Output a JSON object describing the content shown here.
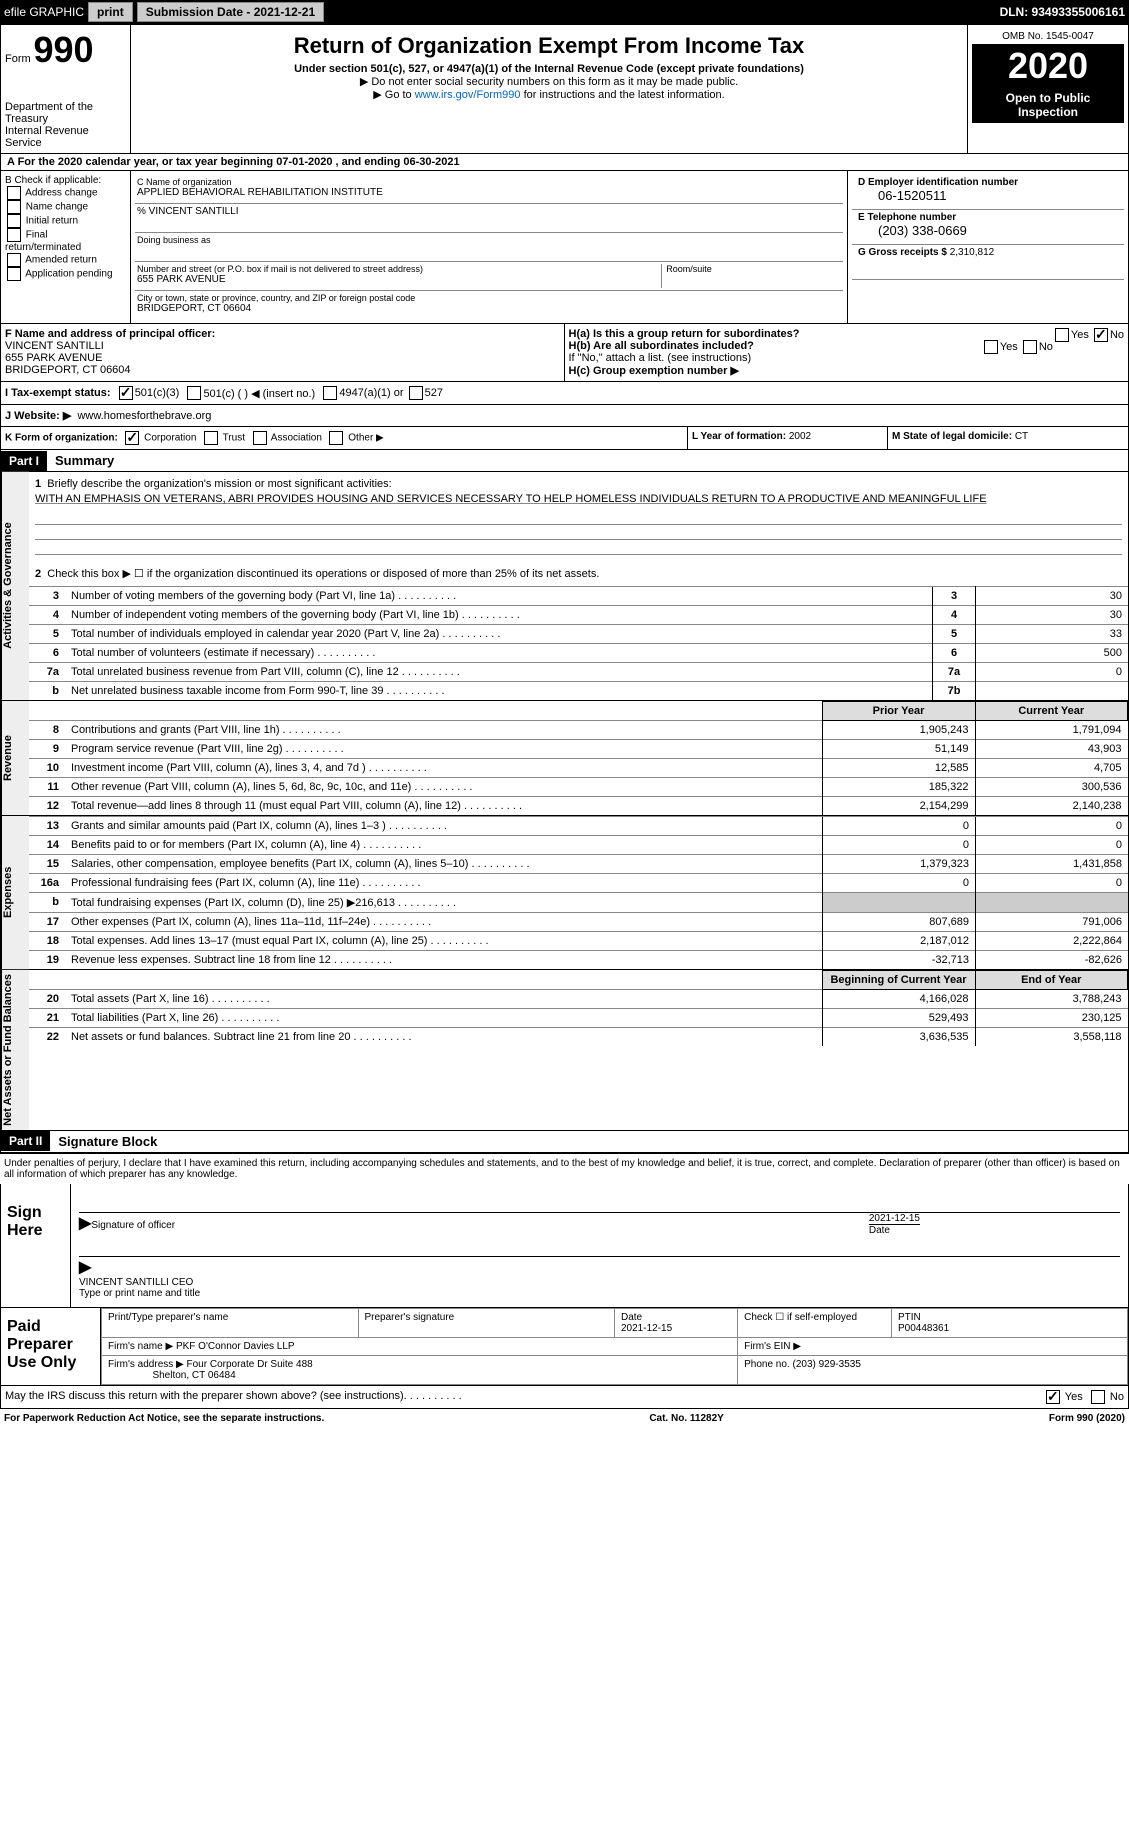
{
  "top": {
    "efile": "efile GRAPHIC",
    "print": "print",
    "sub_label": "Submission Date -",
    "sub_date": "2021-12-21",
    "dln": "DLN: 93493355006161"
  },
  "header": {
    "form": "Form",
    "form_no": "990",
    "dept": "Department of the Treasury\nInternal Revenue Service",
    "title": "Return of Organization Exempt From Income Tax",
    "subtitle": "Under section 501(c), 527, or 4947(a)(1) of the Internal Revenue Code (except private foundations)",
    "line1": "▶ Do not enter social security numbers on this form as it may be made public.",
    "line2_pre": "▶ Go to ",
    "line2_link": "www.irs.gov/Form990",
    "line2_post": " for instructions and the latest information.",
    "omb": "OMB No. 1545-0047",
    "year": "2020",
    "inspection": "Open to Public Inspection"
  },
  "row_a": "A For the 2020 calendar year, or tax year beginning 07-01-2020   , and ending 06-30-2021",
  "box_b": {
    "title": "B Check if applicable:",
    "items": [
      "Address change",
      "Name change",
      "Initial return",
      "Final return/terminated",
      "Amended return",
      "Application pending"
    ]
  },
  "box_c": {
    "name_label": "C Name of organization",
    "name": "APPLIED BEHAVIORAL REHABILITATION INSTITUTE",
    "care_of": "% VINCENT SANTILLI",
    "dba_label": "Doing business as",
    "dba": "",
    "addr_label": "Number and street (or P.O. box if mail is not delivered to street address)",
    "room_label": "Room/suite",
    "addr": "655 PARK AVENUE",
    "city_label": "City or town, state or province, country, and ZIP or foreign postal code",
    "city": "BRIDGEPORT, CT  06604"
  },
  "box_d": {
    "ein_label": "D Employer identification number",
    "ein": "06-1520511",
    "phone_label": "E Telephone number",
    "phone": "(203) 338-0669",
    "gross_label": "G Gross receipts $",
    "gross": "2,310,812"
  },
  "box_f": {
    "label": "F Name and address of principal officer:",
    "name": "VINCENT SANTILLI",
    "addr": "655 PARK AVENUE",
    "city": "BRIDGEPORT, CT  06604"
  },
  "box_h": {
    "a_label": "H(a)  Is this a group return for subordinates?",
    "b_label": "H(b)  Are all subordinates included?",
    "note": "If \"No,\" attach a list. (see instructions)",
    "c_label": "H(c)  Group exemption number ▶"
  },
  "row_i": {
    "label": "I   Tax-exempt status:",
    "opt1": "501(c)(3)",
    "opt2": "501(c) (  ) ◀ (insert no.)",
    "opt3": "4947(a)(1) or",
    "opt4": "527"
  },
  "row_j": {
    "label": "J   Website: ▶",
    "value": "www.homesforthebrave.org"
  },
  "row_k": {
    "label": "K Form of organization:",
    "opts": [
      "Corporation",
      "Trust",
      "Association",
      "Other ▶"
    ]
  },
  "row_l": {
    "label": "L Year of formation:",
    "value": "2002"
  },
  "row_m": {
    "label": "M State of legal domicile:",
    "value": "CT"
  },
  "part1": {
    "header": "Part I",
    "title": "Summary",
    "line1_label": "Briefly describe the organization's mission or most significant activities:",
    "mission": "WITH AN EMPHASIS ON VETERANS, ABRI PROVIDES HOUSING AND SERVICES NECESSARY TO HELP HOMELESS INDIVIDUALS RETURN TO A PRODUCTIVE AND MEANINGFUL LIFE",
    "line2": "Check this box ▶ ☐  if the organization discontinued its operations or disposed of more than 25% of its net assets."
  },
  "governance": {
    "label": "Activities & Governance",
    "rows": [
      {
        "no": "3",
        "text": "Number of voting members of the governing body (Part VI, line 1a)",
        "box": "3",
        "val": "30"
      },
      {
        "no": "4",
        "text": "Number of independent voting members of the governing body (Part VI, line 1b)",
        "box": "4",
        "val": "30"
      },
      {
        "no": "5",
        "text": "Total number of individuals employed in calendar year 2020 (Part V, line 2a)",
        "box": "5",
        "val": "33"
      },
      {
        "no": "6",
        "text": "Total number of volunteers (estimate if necessary)",
        "box": "6",
        "val": "500"
      },
      {
        "no": "7a",
        "text": "Total unrelated business revenue from Part VIII, column (C), line 12",
        "box": "7a",
        "val": "0"
      },
      {
        "no": "b",
        "text": "Net unrelated business taxable income from Form 990-T, line 39",
        "box": "7b",
        "val": ""
      }
    ]
  },
  "revenue": {
    "label": "Revenue",
    "header_prior": "Prior Year",
    "header_current": "Current Year",
    "rows": [
      {
        "no": "8",
        "text": "Contributions and grants (Part VIII, line 1h)",
        "prior": "1,905,243",
        "curr": "1,791,094"
      },
      {
        "no": "9",
        "text": "Program service revenue (Part VIII, line 2g)",
        "prior": "51,149",
        "curr": "43,903"
      },
      {
        "no": "10",
        "text": "Investment income (Part VIII, column (A), lines 3, 4, and 7d )",
        "prior": "12,585",
        "curr": "4,705"
      },
      {
        "no": "11",
        "text": "Other revenue (Part VIII, column (A), lines 5, 6d, 8c, 9c, 10c, and 11e)",
        "prior": "185,322",
        "curr": "300,536"
      },
      {
        "no": "12",
        "text": "Total revenue—add lines 8 through 11 (must equal Part VIII, column (A), line 12)",
        "prior": "2,154,299",
        "curr": "2,140,238"
      }
    ]
  },
  "expenses": {
    "label": "Expenses",
    "rows": [
      {
        "no": "13",
        "text": "Grants and similar amounts paid (Part IX, column (A), lines 1–3 )",
        "prior": "0",
        "curr": "0"
      },
      {
        "no": "14",
        "text": "Benefits paid to or for members (Part IX, column (A), line 4)",
        "prior": "0",
        "curr": "0"
      },
      {
        "no": "15",
        "text": "Salaries, other compensation, employee benefits (Part IX, column (A), lines 5–10)",
        "prior": "1,379,323",
        "curr": "1,431,858"
      },
      {
        "no": "16a",
        "text": "Professional fundraising fees (Part IX, column (A), line 11e)",
        "prior": "0",
        "curr": "0"
      },
      {
        "no": "b",
        "text": "Total fundraising expenses (Part IX, column (D), line 25) ▶216,613",
        "prior": "",
        "curr": "",
        "grey": true
      },
      {
        "no": "17",
        "text": "Other expenses (Part IX, column (A), lines 11a–11d, 11f–24e)",
        "prior": "807,689",
        "curr": "791,006"
      },
      {
        "no": "18",
        "text": "Total expenses. Add lines 13–17 (must equal Part IX, column (A), line 25)",
        "prior": "2,187,012",
        "curr": "2,222,864"
      },
      {
        "no": "19",
        "text": "Revenue less expenses. Subtract line 18 from line 12",
        "prior": "-32,713",
        "curr": "-82,626"
      }
    ]
  },
  "netassets": {
    "label": "Net Assets or Fund Balances",
    "header_begin": "Beginning of Current Year",
    "header_end": "End of Year",
    "rows": [
      {
        "no": "20",
        "text": "Total assets (Part X, line 16)",
        "prior": "4,166,028",
        "curr": "3,788,243"
      },
      {
        "no": "21",
        "text": "Total liabilities (Part X, line 26)",
        "prior": "529,493",
        "curr": "230,125"
      },
      {
        "no": "22",
        "text": "Net assets or fund balances. Subtract line 21 from line 20",
        "prior": "3,636,535",
        "curr": "3,558,118"
      }
    ]
  },
  "part2": {
    "header": "Part II",
    "title": "Signature Block",
    "declaration": "Under penalties of perjury, I declare that I have examined this return, including accompanying schedules and statements, and to the best of my knowledge and belief, it is true, correct, and complete. Declaration of preparer (other than officer) is based on all information of which preparer has any knowledge."
  },
  "sign": {
    "label": "Sign Here",
    "sig_label": "Signature of officer",
    "date_label": "Date",
    "date": "2021-12-15",
    "name_label": "Type or print name and title",
    "name": "VINCENT SANTILLI CEO"
  },
  "paid": {
    "label": "Paid Preparer Use Only",
    "print_label": "Print/Type preparer's name",
    "sig_label": "Preparer's signature",
    "date_label": "Date",
    "date": "2021-12-15",
    "check_label": "Check ☐ if self-employed",
    "ptin_label": "PTIN",
    "ptin": "P00448361",
    "firm_name_label": "Firm's name    ▶",
    "firm_name": "PKF O'Connor Davies LLP",
    "firm_ein_label": "Firm's EIN ▶",
    "firm_addr_label": "Firm's address ▶",
    "firm_addr": "Four Corporate Dr Suite 488",
    "firm_city": "Shelton, CT  06484",
    "phone_label": "Phone no.",
    "phone": "(203) 929-3535"
  },
  "footer": {
    "discuss": "May the IRS discuss this return with the preparer shown above? (see instructions)",
    "paperwork": "For Paperwork Reduction Act Notice, see the separate instructions.",
    "cat": "Cat. No. 11282Y",
    "form": "Form 990 (2020)"
  }
}
